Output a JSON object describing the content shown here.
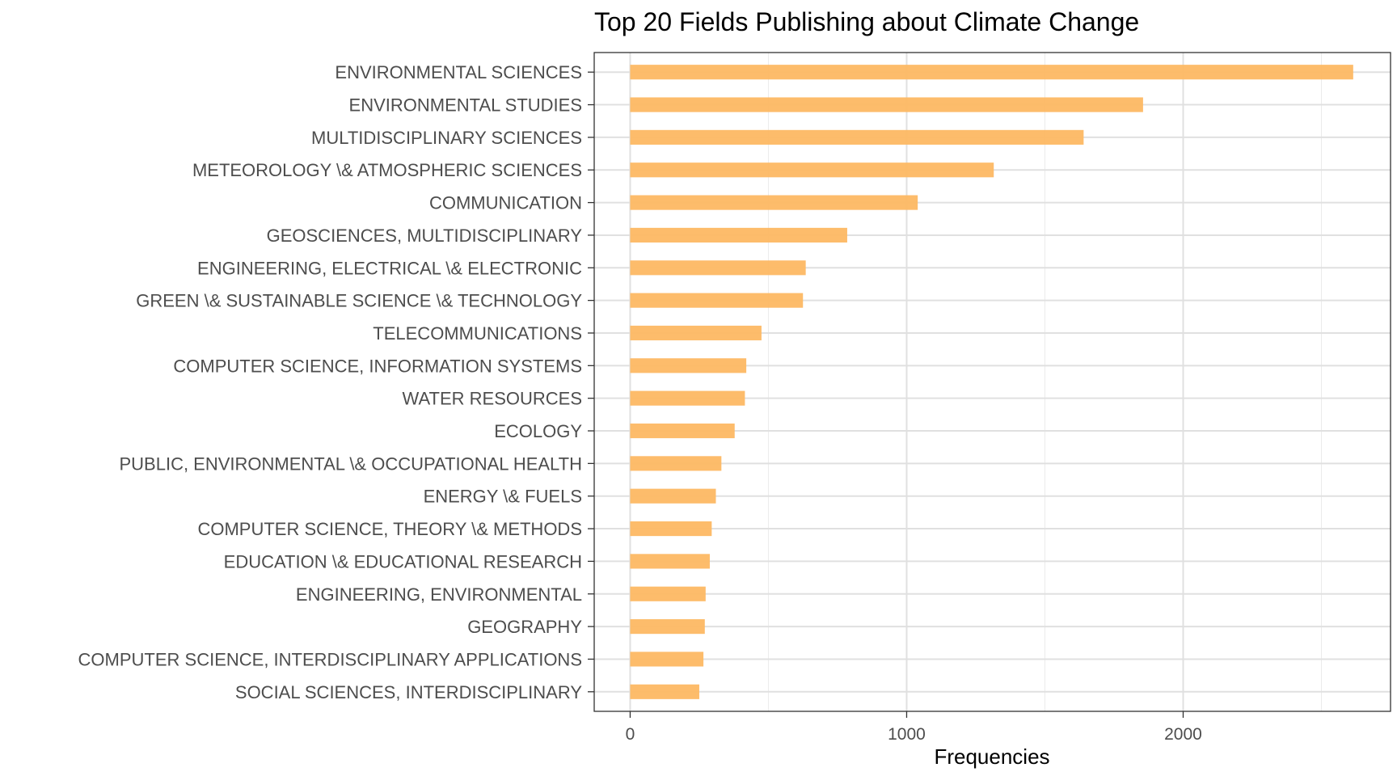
{
  "chart_data": {
    "type": "bar",
    "orientation": "horizontal",
    "title": "Top 20 Fields Publishing about Climate Change",
    "xlabel": "Frequencies",
    "ylabel": "",
    "xlim": [
      -130,
      2750
    ],
    "x_ticks": [
      0,
      1000,
      2000
    ],
    "x_minor_ticks": [
      500,
      1500,
      2500
    ],
    "grid": true,
    "bar_color": "#FDB863",
    "categories": [
      "ENVIRONMENTAL SCIENCES",
      "ENVIRONMENTAL STUDIES",
      "MULTIDISCIPLINARY SCIENCES",
      "METEOROLOGY \\& ATMOSPHERIC SCIENCES",
      "COMMUNICATION",
      "GEOSCIENCES, MULTIDISCIPLINARY",
      "ENGINEERING, ELECTRICAL \\& ELECTRONIC",
      "GREEN \\& SUSTAINABLE SCIENCE \\& TECHNOLOGY",
      "TELECOMMUNICATIONS",
      "COMPUTER SCIENCE, INFORMATION SYSTEMS",
      "WATER RESOURCES",
      "ECOLOGY",
      "PUBLIC, ENVIRONMENTAL \\& OCCUPATIONAL HEALTH",
      "ENERGY \\& FUELS",
      "COMPUTER SCIENCE, THEORY \\& METHODS",
      "EDUCATION \\& EDUCATIONAL RESEARCH",
      "ENGINEERING, ENVIRONMENTAL",
      "GEOGRAPHY",
      "COMPUTER SCIENCE, INTERDISCIPLINARY APPLICATIONS",
      "SOCIAL SCIENCES, INTERDISCIPLINARY"
    ],
    "values": [
      2615,
      1855,
      1640,
      1315,
      1040,
      785,
      635,
      625,
      475,
      420,
      415,
      378,
      330,
      310,
      295,
      288,
      273,
      270,
      265,
      250
    ]
  }
}
